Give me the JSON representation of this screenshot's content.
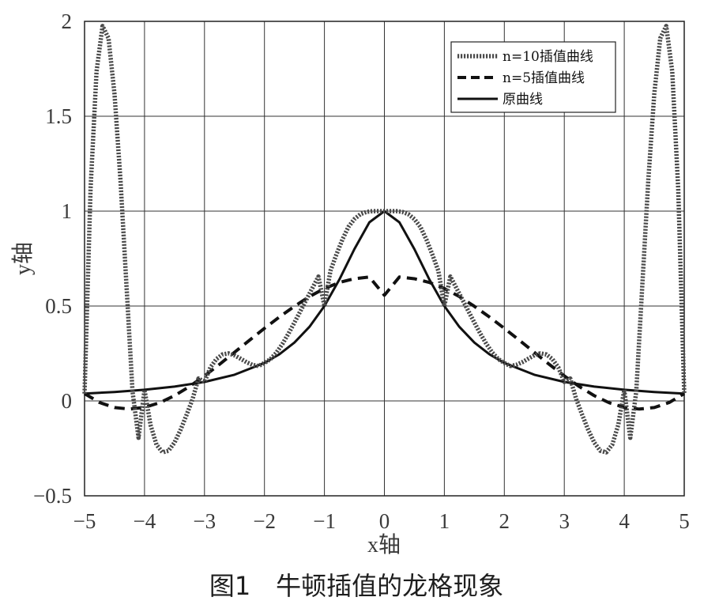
{
  "chart_data": {
    "type": "line",
    "xlabel": "x轴",
    "ylabel": "y轴",
    "xlim": [
      -5,
      5
    ],
    "ylim": [
      -0.5,
      2
    ],
    "xticks": [
      -5,
      -4,
      -3,
      -2,
      -1,
      0,
      1,
      2,
      3,
      4,
      5
    ],
    "yticks": [
      -0.5,
      0,
      0.5,
      1,
      1.5,
      2
    ],
    "xtick_labels": [
      "−5",
      "−4",
      "−3",
      "−2",
      "−1",
      "0",
      "1",
      "2",
      "3",
      "4",
      "5"
    ],
    "ytick_labels": [
      "−0.5",
      "0",
      "0.5",
      "1",
      "1.5",
      "2"
    ],
    "grid": true,
    "legend_position": "top-right",
    "series": [
      {
        "name": "n=10插值曲线",
        "style": "dotted",
        "x": [
          -5,
          -4.9,
          -4.8,
          -4.7,
          -4.6,
          -4.5,
          -4.4,
          -4.3,
          -4.2,
          -4.1,
          -4,
          -3.9,
          -3.8,
          -3.7,
          -3.6,
          -3.5,
          -3.4,
          -3.3,
          -3.2,
          -3.1,
          -3,
          -2.9,
          -2.8,
          -2.7,
          -2.6,
          -2.5,
          -2.4,
          -2.3,
          -2.2,
          -2.1,
          -2,
          -1.9,
          -1.8,
          -1.7,
          -1.6,
          -1.5,
          -1.4,
          -1.3,
          -1.2,
          -1.1,
          -1,
          -0.9,
          -0.8,
          -0.7,
          -0.6,
          -0.5,
          -0.4,
          -0.3,
          -0.2,
          -0.1,
          0,
          0.1,
          0.2,
          0.3,
          0.4,
          0.5,
          0.6,
          0.7,
          0.8,
          0.9,
          1,
          1.1,
          1.2,
          1.3,
          1.4,
          1.5,
          1.6,
          1.7,
          1.8,
          1.9,
          2,
          2.1,
          2.2,
          2.3,
          2.4,
          2.5,
          2.6,
          2.7,
          2.8,
          2.9,
          3,
          3.1,
          3.2,
          3.3,
          3.4,
          3.5,
          3.6,
          3.7,
          3.8,
          3.9,
          4,
          4.1,
          4.2,
          4.3,
          4.4,
          4.5,
          4.6,
          4.7,
          4.8,
          4.9,
          5
        ],
        "y": [
          0.0385,
          1.1154,
          1.7356,
          1.9754,
          1.9109,
          1.616,
          1.1599,
          0.6043,
          0.0496,
          -0.1945,
          0.0588,
          -0.1263,
          -0.2306,
          -0.271,
          -0.2627,
          -0.2195,
          -0.1534,
          -0.0747,
          0.0082,
          0.118,
          0.1,
          0.177,
          0.221,
          0.2448,
          0.2505,
          0.2402,
          0.2226,
          0.2042,
          0.1899,
          0.1839,
          0.2,
          0.2202,
          0.2545,
          0.3004,
          0.3544,
          0.413,
          0.4736,
          0.5345,
          0.5949,
          0.6552,
          0.5,
          0.6853,
          0.7713,
          0.8506,
          0.9167,
          0.9584,
          0.9838,
          0.996,
          1.0,
          1.0,
          1.0,
          1.0,
          1.0,
          0.996,
          0.9838,
          0.9584,
          0.9167,
          0.8506,
          0.7713,
          0.6853,
          0.5,
          0.6552,
          0.5949,
          0.5345,
          0.4736,
          0.413,
          0.3544,
          0.3004,
          0.2545,
          0.2202,
          0.2,
          0.1839,
          0.1899,
          0.2042,
          0.2226,
          0.2402,
          0.2505,
          0.2448,
          0.221,
          0.177,
          0.1,
          0.118,
          0.0082,
          -0.0747,
          -0.1534,
          -0.2195,
          -0.2627,
          -0.271,
          -0.2306,
          -0.1263,
          0.0588,
          -0.1945,
          0.0496,
          0.6043,
          1.1599,
          1.616,
          1.9109,
          1.9754,
          1.7356,
          1.1154,
          0.0385
        ]
      },
      {
        "name": "n=5插值曲线",
        "style": "dashed",
        "x": [
          -5,
          -4.75,
          -4.5,
          -4.25,
          -4,
          -3.75,
          -3.5,
          -3.25,
          -3,
          -2.75,
          -2.5,
          -2.25,
          -2,
          -1.75,
          -1.5,
          -1.25,
          -1,
          -0.75,
          -0.5,
          -0.25,
          0,
          0.25,
          0.5,
          0.75,
          1,
          1.25,
          1.5,
          1.75,
          2,
          2.25,
          2.5,
          2.75,
          3,
          3.25,
          3.5,
          3.75,
          4,
          4.25,
          4.5,
          4.75,
          5
        ],
        "y": [
          0.0385,
          -0.0084,
          -0.035,
          -0.0429,
          -0.0338,
          -0.0099,
          0.0276,
          0.0758,
          0.1317,
          0.1925,
          0.2559,
          0.3197,
          0.3824,
          0.4425,
          0.4986,
          0.5498,
          0.5923,
          0.6243,
          0.6438,
          0.653,
          0.5568,
          0.653,
          0.6438,
          0.6243,
          0.5923,
          0.5498,
          0.4986,
          0.4425,
          0.3824,
          0.3197,
          0.2559,
          0.1925,
          0.1317,
          0.0758,
          0.0276,
          -0.0099,
          -0.0338,
          -0.0429,
          -0.035,
          -0.0084,
          0.0385
        ]
      },
      {
        "name": "原曲线",
        "style": "solid",
        "x": [
          -5,
          -4.5,
          -4,
          -3.5,
          -3,
          -2.5,
          -2,
          -1.75,
          -1.5,
          -1.25,
          -1,
          -0.75,
          -0.5,
          -0.25,
          0,
          0.25,
          0.5,
          0.75,
          1,
          1.25,
          1.5,
          1.75,
          2,
          2.5,
          3,
          3.5,
          4,
          4.5,
          5
        ],
        "y": [
          0.0385,
          0.0471,
          0.0588,
          0.0755,
          0.1,
          0.1379,
          0.2,
          0.2462,
          0.3077,
          0.3902,
          0.5,
          0.64,
          0.8,
          0.9412,
          1.0,
          0.9412,
          0.8,
          0.64,
          0.5,
          0.3902,
          0.3077,
          0.2462,
          0.2,
          0.1379,
          0.1,
          0.0755,
          0.0588,
          0.0471,
          0.0385
        ]
      }
    ]
  },
  "caption": "图1　牛顿插值的龙格现象"
}
